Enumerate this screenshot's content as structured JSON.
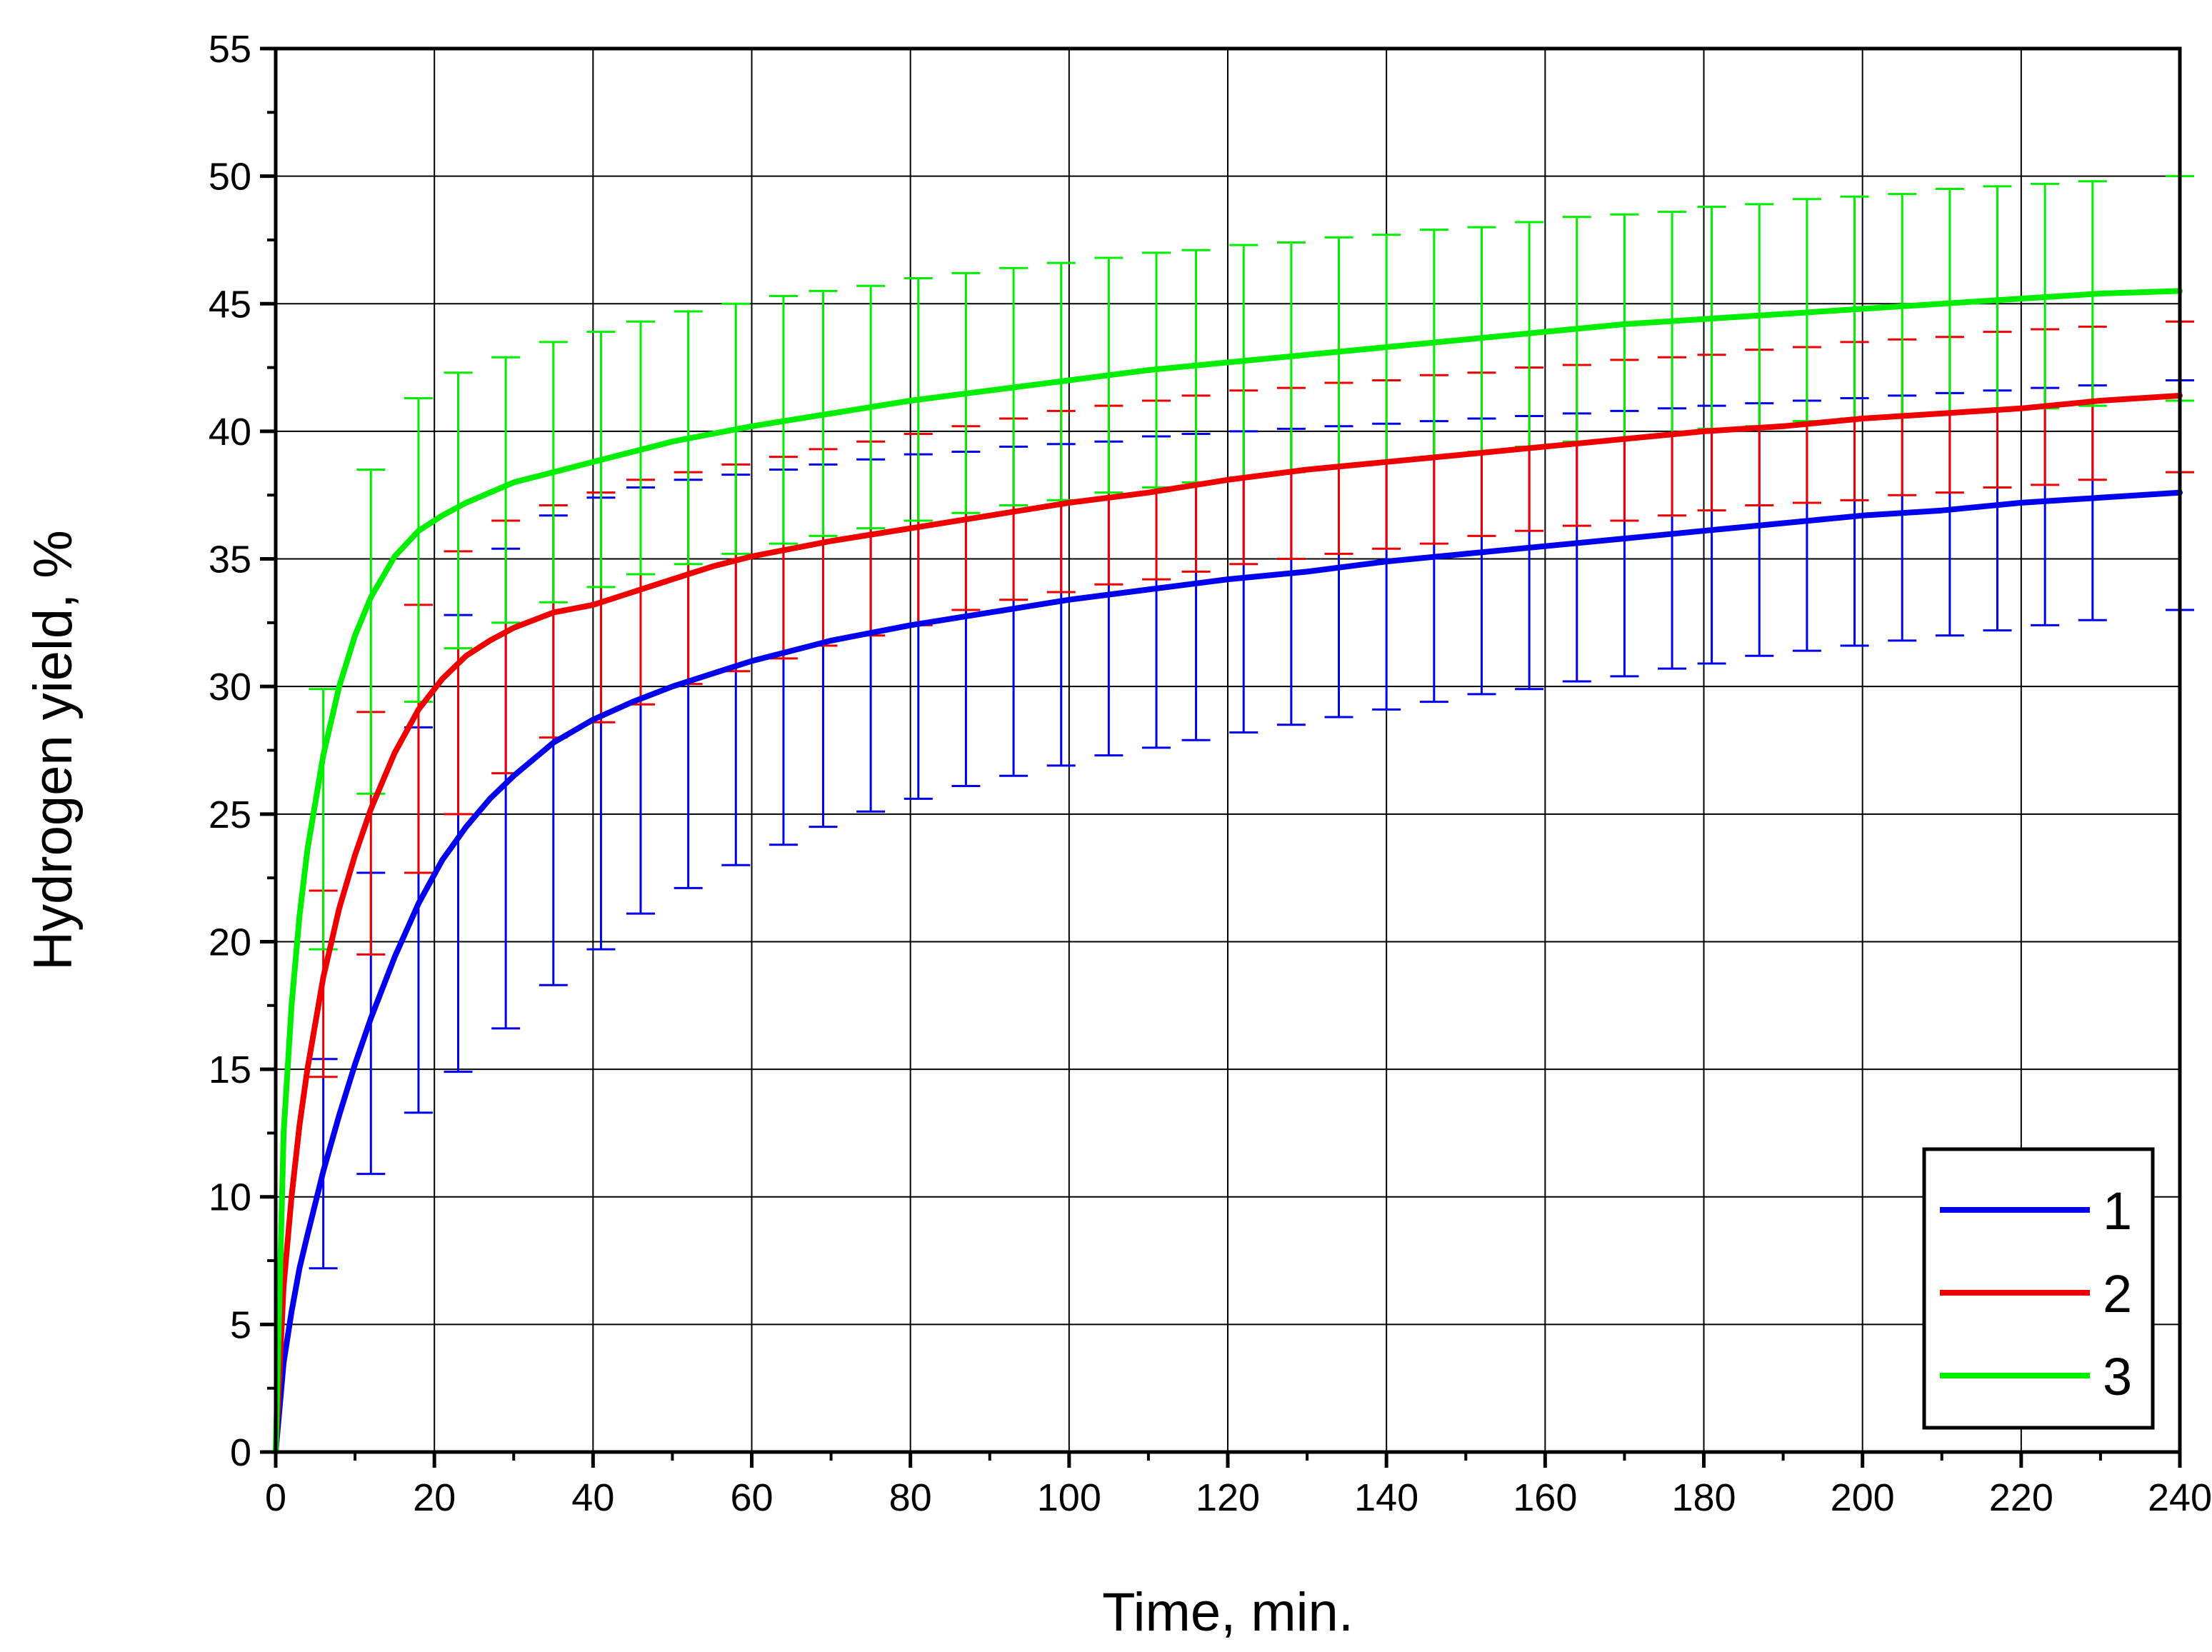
{
  "chart_data": {
    "type": "line",
    "xlabel": "Time, min.",
    "ylabel": "Hydrogen yield, %",
    "xlim": [
      0,
      240
    ],
    "ylim": [
      0,
      55
    ],
    "xticks": [
      0,
      20,
      40,
      60,
      80,
      100,
      120,
      140,
      160,
      180,
      200,
      220,
      240
    ],
    "yticks": [
      0,
      5,
      10,
      15,
      20,
      25,
      30,
      35,
      40,
      45,
      50,
      55
    ],
    "grid": true,
    "legend": {
      "placement": "bottom-right"
    },
    "series": [
      {
        "name": "1",
        "color": "#0000ee",
        "x": [
          0,
          1,
          2,
          3,
          4,
          6,
          8,
          10,
          12,
          15,
          18,
          21,
          24,
          27,
          30,
          35,
          40,
          45,
          50,
          55,
          60,
          70,
          80,
          90,
          100,
          110,
          120,
          130,
          140,
          150,
          160,
          170,
          180,
          190,
          200,
          210,
          220,
          230,
          240
        ],
        "values": [
          0,
          3.5,
          5.5,
          7.2,
          8.5,
          11,
          13.2,
          15.2,
          17,
          19.4,
          21.5,
          23.2,
          24.5,
          25.6,
          26.5,
          27.8,
          28.7,
          29.4,
          30,
          30.5,
          31,
          31.8,
          32.4,
          32.9,
          33.4,
          33.8,
          34.2,
          34.5,
          34.9,
          35.2,
          35.5,
          35.8,
          36.1,
          36.4,
          36.7,
          36.9,
          37.2,
          37.4,
          37.6
        ],
        "err_x": [
          6,
          12,
          18,
          23,
          29,
          35,
          41,
          46,
          52,
          58,
          64,
          69,
          75,
          81,
          87,
          93,
          99,
          105,
          111,
          116,
          122,
          128,
          134,
          140,
          146,
          152,
          158,
          164,
          170,
          176,
          181,
          187,
          193,
          199,
          205,
          211,
          217,
          223,
          229,
          240
        ],
        "err_low": [
          7.2,
          10.9,
          13.3,
          14.9,
          16.6,
          18.3,
          19.7,
          21.1,
          22.1,
          23.0,
          23.8,
          24.5,
          25.1,
          25.6,
          26.1,
          26.5,
          26.9,
          27.3,
          27.6,
          27.9,
          28.2,
          28.5,
          28.8,
          29.1,
          29.4,
          29.7,
          29.9,
          30.2,
          30.4,
          30.7,
          30.9,
          31.2,
          31.4,
          31.6,
          31.8,
          32.0,
          32.2,
          32.4,
          32.6,
          33.0
        ],
        "err_high": [
          15.4,
          22.7,
          28.4,
          32.8,
          35.4,
          36.7,
          37.4,
          37.8,
          38.1,
          38.3,
          38.5,
          38.7,
          38.9,
          39.1,
          39.2,
          39.4,
          39.5,
          39.6,
          39.8,
          39.9,
          40.0,
          40.1,
          40.2,
          40.3,
          40.4,
          40.5,
          40.6,
          40.7,
          40.8,
          40.9,
          41.0,
          41.1,
          41.2,
          41.3,
          41.4,
          41.5,
          41.6,
          41.7,
          41.8,
          42.0
        ]
      },
      {
        "name": "2",
        "color": "#ee0000",
        "x": [
          0,
          1,
          2,
          3,
          4,
          6,
          8,
          10,
          12,
          15,
          18,
          21,
          24,
          27,
          30,
          35,
          40,
          45,
          50,
          55,
          60,
          70,
          80,
          90,
          100,
          110,
          120,
          130,
          140,
          150,
          160,
          170,
          180,
          190,
          200,
          210,
          220,
          230,
          240
        ],
        "values": [
          0,
          6.5,
          10,
          12.8,
          15,
          18.6,
          21.3,
          23.4,
          25.2,
          27.4,
          29.1,
          30.3,
          31.2,
          31.8,
          32.3,
          32.9,
          33.2,
          33.7,
          34.2,
          34.7,
          35.1,
          35.7,
          36.2,
          36.7,
          37.2,
          37.6,
          38.1,
          38.5,
          38.8,
          39.1,
          39.4,
          39.7,
          40,
          40.2,
          40.5,
          40.7,
          40.9,
          41.2,
          41.4
        ],
        "err_x": [
          6,
          12,
          18,
          23,
          29,
          35,
          41,
          46,
          52,
          58,
          64,
          69,
          75,
          81,
          87,
          93,
          99,
          105,
          111,
          116,
          122,
          128,
          134,
          140,
          146,
          152,
          158,
          164,
          170,
          176,
          181,
          187,
          193,
          199,
          205,
          211,
          217,
          223,
          229,
          240
        ],
        "err_low": [
          14.7,
          19.5,
          22.7,
          25.0,
          26.6,
          28.0,
          28.6,
          29.3,
          30.1,
          30.6,
          31.1,
          31.6,
          32.0,
          32.4,
          33.0,
          33.4,
          33.7,
          34.0,
          34.2,
          34.5,
          34.8,
          35.0,
          35.2,
          35.4,
          35.6,
          35.9,
          36.1,
          36.3,
          36.5,
          36.7,
          36.9,
          37.1,
          37.2,
          37.3,
          37.5,
          37.6,
          37.8,
          37.9,
          38.1,
          38.4
        ],
        "err_high": [
          22.0,
          29.0,
          33.2,
          35.3,
          36.5,
          37.1,
          37.6,
          38.1,
          38.4,
          38.7,
          39.0,
          39.3,
          39.6,
          39.9,
          40.2,
          40.5,
          40.8,
          41.0,
          41.2,
          41.4,
          41.6,
          41.7,
          41.9,
          42.0,
          42.2,
          42.3,
          42.5,
          42.6,
          42.8,
          42.9,
          43.0,
          43.2,
          43.3,
          43.5,
          43.6,
          43.7,
          43.9,
          44.0,
          44.1,
          44.3
        ]
      },
      {
        "name": "3",
        "color": "#00ee00",
        "x": [
          0,
          1,
          2,
          3,
          4,
          6,
          8,
          10,
          12,
          15,
          18,
          21,
          24,
          27,
          30,
          35,
          40,
          45,
          50,
          55,
          60,
          70,
          80,
          90,
          100,
          110,
          120,
          130,
          140,
          150,
          160,
          170,
          180,
          190,
          200,
          210,
          220,
          230,
          240
        ],
        "values": [
          0,
          12.5,
          17.5,
          21,
          23.6,
          27.3,
          30,
          32,
          33.5,
          35.1,
          36.1,
          36.7,
          37.2,
          37.6,
          38,
          38.4,
          38.8,
          39.2,
          39.6,
          39.9,
          40.2,
          40.7,
          41.2,
          41.6,
          42,
          42.4,
          42.7,
          43,
          43.3,
          43.6,
          43.9,
          44.2,
          44.4,
          44.6,
          44.8,
          45,
          45.2,
          45.4,
          45.5
        ],
        "err_x": [
          6,
          12,
          18,
          23,
          29,
          35,
          41,
          46,
          52,
          58,
          64,
          69,
          75,
          81,
          87,
          93,
          99,
          105,
          111,
          116,
          122,
          128,
          134,
          140,
          146,
          152,
          158,
          164,
          170,
          176,
          181,
          187,
          193,
          199,
          205,
          211,
          217,
          223,
          229,
          240
        ],
        "err_low": [
          19.7,
          25.8,
          29.4,
          31.5,
          32.5,
          33.3,
          33.9,
          34.4,
          34.8,
          35.2,
          35.6,
          35.9,
          36.2,
          36.5,
          36.8,
          37.1,
          37.3,
          37.6,
          37.8,
          38.0,
          38.2,
          38.4,
          38.6,
          38.8,
          39.0,
          39.2,
          39.4,
          39.6,
          39.7,
          39.9,
          40.1,
          40.2,
          40.4,
          40.5,
          40.6,
          40.7,
          40.8,
          40.9,
          41.0,
          41.2
        ],
        "err_high": [
          29.9,
          38.5,
          41.3,
          42.3,
          42.9,
          43.5,
          43.9,
          44.3,
          44.7,
          45.0,
          45.3,
          45.5,
          45.7,
          46.0,
          46.2,
          46.4,
          46.6,
          46.8,
          47.0,
          47.1,
          47.3,
          47.4,
          47.6,
          47.7,
          47.9,
          48.0,
          48.2,
          48.4,
          48.5,
          48.6,
          48.8,
          48.9,
          49.1,
          49.2,
          49.3,
          49.5,
          49.6,
          49.7,
          49.8,
          50.0
        ]
      }
    ]
  }
}
